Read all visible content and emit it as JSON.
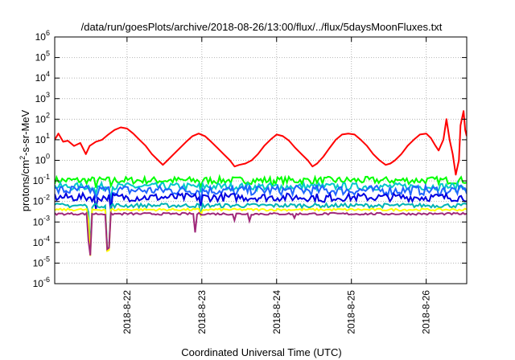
{
  "chart_data": {
    "type": "line",
    "title": "/data/run/goesPlots/archive/2018-08-26/13:00/flux/../flux/5daysMoonFluxes.txt",
    "xlabel": "Coordinated Universal Time (UTC)",
    "ylabel": {
      "pre": "protons/cm",
      "sup": "2",
      "post": "-s-sr-MeV"
    },
    "x_range": [
      "2018-08-21T00:48",
      "2018-08-26T13:00"
    ],
    "x_ticks": [
      "2018-8-22",
      "2018-8-23",
      "2018-8-24",
      "2018-8-25",
      "2018-8-26"
    ],
    "y_scale": "log",
    "y_range": [
      1e-06,
      1000000.0
    ],
    "y_ticks": [
      {
        "value": 1e-06,
        "base": "10",
        "exp": "-6"
      },
      {
        "value": 1e-05,
        "base": "10",
        "exp": "-5"
      },
      {
        "value": 0.0001,
        "base": "10",
        "exp": "-4"
      },
      {
        "value": 0.001,
        "base": "10",
        "exp": "-3"
      },
      {
        "value": 0.01,
        "base": "10",
        "exp": "-2"
      },
      {
        "value": 0.1,
        "base": "10",
        "exp": "-1"
      },
      {
        "value": 1.0,
        "base": "10",
        "exp": "0"
      },
      {
        "value": 10.0,
        "base": "10",
        "exp": "1"
      },
      {
        "value": 100.0,
        "base": "10",
        "exp": "2"
      },
      {
        "value": 1000.0,
        "base": "10",
        "exp": "3"
      },
      {
        "value": 10000.0,
        "base": "10",
        "exp": "4"
      },
      {
        "value": 100000.0,
        "base": "10",
        "exp": "5"
      },
      {
        "value": 1000000.0,
        "base": "10",
        "exp": "6"
      }
    ],
    "grid": true,
    "legend": "none",
    "series": [
      {
        "color": "#ff0000",
        "points": [
          [
            "2018-08-21T00:48",
            10
          ],
          [
            "2018-08-21T02:00",
            20
          ],
          [
            "2018-08-21T03:30",
            8
          ],
          [
            "2018-08-21T05:00",
            9
          ],
          [
            "2018-08-21T07:00",
            5
          ],
          [
            "2018-08-21T09:00",
            7
          ],
          [
            "2018-08-21T10:48",
            2
          ],
          [
            "2018-08-21T12:00",
            5
          ],
          [
            "2018-08-21T14:00",
            8
          ],
          [
            "2018-08-21T16:00",
            10
          ],
          [
            "2018-08-21T18:00",
            18
          ],
          [
            "2018-08-21T20:00",
            30
          ],
          [
            "2018-08-21T22:00",
            40
          ],
          [
            "2018-08-22T00:00",
            35
          ],
          [
            "2018-08-22T02:00",
            20
          ],
          [
            "2018-08-22T04:00",
            10
          ],
          [
            "2018-08-22T06:00",
            5
          ],
          [
            "2018-08-22T08:00",
            2
          ],
          [
            "2018-08-22T10:00",
            1
          ],
          [
            "2018-08-22T11:30",
            0.6
          ],
          [
            "2018-08-22T13:00",
            1
          ],
          [
            "2018-08-22T15:00",
            2
          ],
          [
            "2018-08-22T17:00",
            4
          ],
          [
            "2018-08-22T19:00",
            8
          ],
          [
            "2018-08-22T21:00",
            15
          ],
          [
            "2018-08-22T23:00",
            20
          ],
          [
            "2018-08-23T01:00",
            15
          ],
          [
            "2018-08-23T03:00",
            8
          ],
          [
            "2018-08-23T05:00",
            4
          ],
          [
            "2018-08-23T07:00",
            2
          ],
          [
            "2018-08-23T09:00",
            1
          ],
          [
            "2018-08-23T10:30",
            0.5
          ],
          [
            "2018-08-23T12:00",
            0.6
          ],
          [
            "2018-08-23T14:00",
            0.7
          ],
          [
            "2018-08-23T16:00",
            1
          ],
          [
            "2018-08-23T18:00",
            2
          ],
          [
            "2018-08-23T20:00",
            5
          ],
          [
            "2018-08-23T22:00",
            10
          ],
          [
            "2018-08-24T00:00",
            18
          ],
          [
            "2018-08-24T02:00",
            15
          ],
          [
            "2018-08-24T04:00",
            9
          ],
          [
            "2018-08-24T06:00",
            4
          ],
          [
            "2018-08-24T08:00",
            2
          ],
          [
            "2018-08-24T10:00",
            1
          ],
          [
            "2018-08-24T11:30",
            0.5
          ],
          [
            "2018-08-24T13:00",
            0.7
          ],
          [
            "2018-08-24T15:00",
            1.5
          ],
          [
            "2018-08-24T17:00",
            4
          ],
          [
            "2018-08-24T19:00",
            10
          ],
          [
            "2018-08-24T21:00",
            18
          ],
          [
            "2018-08-24T23:00",
            20
          ],
          [
            "2018-08-25T01:00",
            18
          ],
          [
            "2018-08-25T03:00",
            10
          ],
          [
            "2018-08-25T05:00",
            5
          ],
          [
            "2018-08-25T07:00",
            2
          ],
          [
            "2018-08-25T09:00",
            1
          ],
          [
            "2018-08-25T11:00",
            0.6
          ],
          [
            "2018-08-25T12:30",
            0.7
          ],
          [
            "2018-08-25T14:00",
            1
          ],
          [
            "2018-08-25T16:00",
            2
          ],
          [
            "2018-08-25T18:00",
            5
          ],
          [
            "2018-08-25T20:00",
            10
          ],
          [
            "2018-08-25T22:00",
            18
          ],
          [
            "2018-08-26T00:00",
            20
          ],
          [
            "2018-08-26T01:30",
            12
          ],
          [
            "2018-08-26T03:00",
            5
          ],
          [
            "2018-08-26T04:00",
            3
          ],
          [
            "2018-08-26T05:30",
            10
          ],
          [
            "2018-08-26T06:30",
            100
          ],
          [
            "2018-08-26T07:30",
            10
          ],
          [
            "2018-08-26T08:30",
            2
          ],
          [
            "2018-08-26T09:30",
            0.2
          ],
          [
            "2018-08-26T10:30",
            1
          ],
          [
            "2018-08-26T11:00",
            50
          ],
          [
            "2018-08-26T12:00",
            250
          ],
          [
            "2018-08-26T12:30",
            30
          ],
          [
            "2018-08-26T13:00",
            15
          ]
        ]
      },
      {
        "color": "#00ff00",
        "band": [
          0.07,
          0.16
        ],
        "dips": [
          [
            0.55,
            0.6
          ],
          [
            0.75,
            0.6
          ],
          [
            1.95,
            0.6
          ],
          [
            2.9,
            0.6
          ]
        ]
      },
      {
        "color": "#00c8c8",
        "band": [
          0.035,
          0.08
        ],
        "dips": [
          [
            0.55,
            0.4
          ],
          [
            0.75,
            0.4
          ],
          [
            1.95,
            0.5
          ],
          [
            3.0,
            0.5
          ]
        ]
      },
      {
        "color": "#1e64ff",
        "band": [
          0.02,
          0.06
        ],
        "dips": [
          [
            0.55,
            0.3
          ],
          [
            0.75,
            0.3
          ],
          [
            1.95,
            0.5
          ],
          [
            2.4,
            0.5
          ]
        ]
      },
      {
        "color": "#0000e0",
        "band": [
          0.01,
          0.025
        ],
        "dips": [
          [
            0.55,
            0.2
          ],
          [
            0.75,
            0.3
          ],
          [
            1.95,
            0.4
          ],
          [
            3.6,
            0.5
          ]
        ]
      },
      {
        "color": "#00b4b4",
        "band": [
          0.005,
          0.008
        ],
        "dips": [
          [
            0.45,
            0.4
          ],
          [
            0.48,
            0.01
          ],
          [
            0.72,
            0.008
          ],
          [
            1.95,
            0.3
          ]
        ]
      },
      {
        "color": "#ffff00",
        "band": [
          0.0035,
          0.0045
        ],
        "dips": [
          [
            0.45,
            0.3
          ],
          [
            0.48,
            0.005
          ],
          [
            0.72,
            0.01
          ],
          [
            1.95,
            0.5
          ]
        ]
      },
      {
        "color": "#a0287a",
        "band": [
          0.0022,
          0.0028
        ],
        "dips": [
          [
            0.45,
            0.05
          ],
          [
            0.48,
            0.01
          ],
          [
            0.72,
            0.02
          ],
          [
            1.88,
            0.12
          ],
          [
            2.4,
            0.5
          ],
          [
            2.6,
            0.5
          ],
          [
            3.2,
            0.6
          ]
        ]
      }
    ]
  }
}
